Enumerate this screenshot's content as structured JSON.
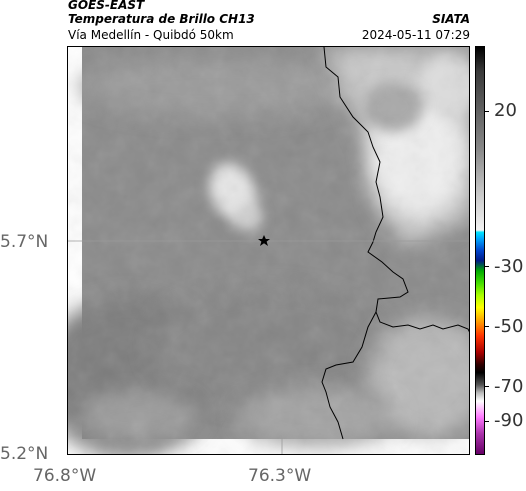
{
  "header": {
    "satellite": "GOES-EAST",
    "product": "Temperatura de Brillo CH13",
    "region": "Vía Medellín - Quibdó 50km",
    "source": "SIATA",
    "datetime": "2024-05-11 07:29"
  },
  "axes": {
    "x_ticks": [
      "76.8°W",
      "76.3°W"
    ],
    "y_ticks": [
      "5.7°N",
      "5.2°N"
    ]
  },
  "colorbar": {
    "ticks": [
      "20",
      "-30",
      "-50",
      "-70",
      "-90"
    ]
  },
  "marker": {
    "icon": "star-icon"
  }
}
